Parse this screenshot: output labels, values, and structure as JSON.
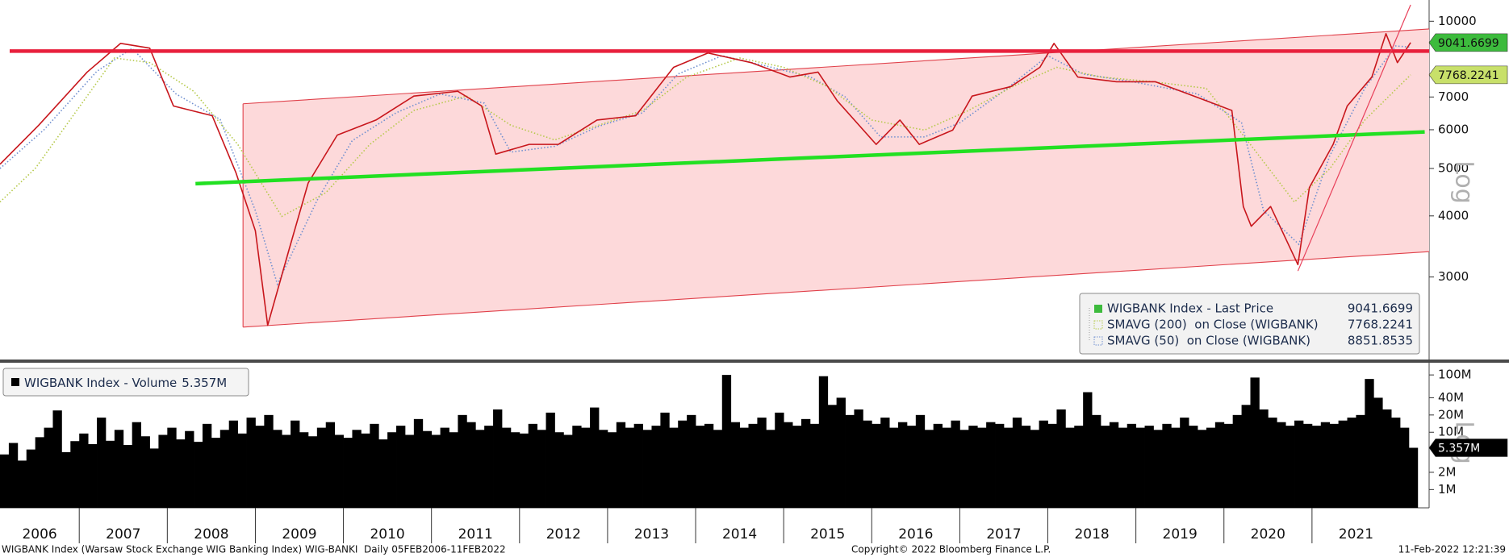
{
  "chart_data": [
    {
      "type": "line",
      "log_scale": true,
      "ylabel": "Log",
      "legend": "lower right",
      "xlim": [
        2006.1,
        2022.33
      ],
      "ylim": [
        2050,
        11050
      ],
      "yticks": [
        3000,
        4000,
        5000,
        6000,
        7000,
        10000
      ],
      "channel": {
        "x": [
          2008.86,
          2022.33
        ],
        "upper": [
          6780,
          9640
        ],
        "lower": [
          2370,
          3380
        ],
        "color": "#fdd9da",
        "edge_color": "#e0404a"
      },
      "lines": [
        {
          "x": [
            2006.21,
            2022.33
          ],
          "values": [
            8690,
            8690
          ],
          "color": "#e8203c",
          "bold": true
        },
        {
          "x": [
            2008.32,
            2022.28
          ],
          "values": [
            4655,
            5940
          ],
          "color": "#22e022",
          "bold": true
        },
        {
          "x": [
            2020.84,
            2022.12
          ],
          "values": [
            3086,
            10800
          ],
          "color": "#e8405a",
          "bold": false
        }
      ],
      "series": [
        {
          "name": "WIGBANK Index - Last Price",
          "color": "#c8161c",
          "tag_color": "#3dbb3d",
          "x": [
            2006.1,
            2006.54,
            2007.09,
            2007.47,
            2007.8,
            2008.07,
            2008.51,
            2008.78,
            2009.0,
            2009.14,
            2009.38,
            2009.6,
            2009.93,
            2010.37,
            2010.8,
            2011.3,
            2011.57,
            2011.73,
            2012.11,
            2012.44,
            2012.88,
            2013.32,
            2013.75,
            2014.14,
            2014.63,
            2015.07,
            2015.39,
            2015.61,
            2016.05,
            2016.32,
            2016.54,
            2016.92,
            2017.14,
            2017.58,
            2017.91,
            2018.07,
            2018.34,
            2018.78,
            2019.22,
            2019.66,
            2020.09,
            2020.22,
            2020.31,
            2020.53,
            2020.84,
            2020.97,
            2021.24,
            2021.4,
            2021.68,
            2021.84,
            2021.97,
            2022.12
          ],
          "values": [
            5100,
            6130,
            7870,
            9010,
            8810,
            6710,
            6410,
            4900,
            3730,
            2390,
            3400,
            4670,
            5850,
            6280,
            7030,
            7190,
            6710,
            5350,
            5600,
            5600,
            6280,
            6410,
            8050,
            8610,
            8230,
            7690,
            7870,
            6870,
            5600,
            6280,
            5600,
            5990,
            7030,
            7350,
            8050,
            9010,
            7690,
            7520,
            7520,
            7030,
            6570,
            4180,
            3810,
            4180,
            3180,
            4570,
            5600,
            6710,
            7690,
            9430,
            8230,
            9041.6699
          ]
        },
        {
          "name": "SMAVG (200)  on Close (WIGBANK)",
          "color": "#b5c94a",
          "tag_color": "#c8e06a",
          "dash": "dotted",
          "x": [
            2006.1,
            2006.5,
            2007.4,
            2007.8,
            2008.3,
            2008.8,
            2009.3,
            2009.8,
            2010.3,
            2010.8,
            2011.4,
            2011.9,
            2012.4,
            2012.9,
            2013.4,
            2013.9,
            2014.5,
            2015.0,
            2015.5,
            2016.0,
            2016.6,
            2017.1,
            2017.6,
            2018.1,
            2018.6,
            2019.2,
            2019.8,
            2020.3,
            2020.8,
            2021.2,
            2021.6,
            2022.12
          ],
          "values": [
            4270,
            5000,
            8410,
            8230,
            7190,
            5600,
            3990,
            4460,
            5600,
            6570,
            7030,
            6130,
            5720,
            6130,
            6570,
            7690,
            8410,
            8050,
            7350,
            6280,
            5990,
            6570,
            7350,
            8050,
            7690,
            7520,
            7290,
            5600,
            4270,
            4990,
            6280,
            7768.2241
          ]
        },
        {
          "name": "SMAVG (50)  on Close (WIGBANK)",
          "color": "#6f8fd0",
          "dash": "dotted",
          "x": [
            2006.1,
            2006.6,
            2007.2,
            2007.6,
            2008.1,
            2008.6,
            2009.0,
            2009.25,
            2009.7,
            2010.1,
            2010.6,
            2011.1,
            2011.6,
            2011.9,
            2012.4,
            2012.9,
            2013.4,
            2013.8,
            2014.3,
            2014.8,
            2015.3,
            2015.7,
            2016.1,
            2016.6,
            2017.0,
            2017.5,
            2018.0,
            2018.4,
            2019.0,
            2019.7,
            2020.2,
            2020.45,
            2020.85,
            2021.2,
            2021.6,
            2021.95,
            2022.12
          ],
          "values": [
            5000,
            6000,
            7900,
            8800,
            7100,
            6300,
            4100,
            2900,
            4300,
            5700,
            6500,
            7100,
            6800,
            5400,
            5550,
            6100,
            6500,
            7800,
            8500,
            8100,
            7700,
            7000,
            5800,
            5800,
            6200,
            7200,
            8500,
            7800,
            7500,
            7100,
            6200,
            4100,
            3500,
            5300,
            7300,
            8900,
            8851.8535
          ]
        }
      ]
    },
    {
      "type": "bar",
      "log_scale": true,
      "ylabel": "Log",
      "legend": "upper left",
      "xlim": [
        2006.1,
        2022.33
      ],
      "ylim": [
        480000,
        153000000
      ],
      "yticks": [
        {
          "value": 1000000,
          "label": "1M"
        },
        {
          "value": 2000000,
          "label": "2M"
        },
        {
          "value": 10000000,
          "label": "10M"
        },
        {
          "value": 20000000,
          "label": "20M"
        },
        {
          "value": 40000000,
          "label": "40M"
        },
        {
          "value": 100000000,
          "label": "100M"
        }
      ],
      "xticks": [
        2006,
        2007,
        2008,
        2009,
        2010,
        2011,
        2012,
        2013,
        2014,
        2015,
        2016,
        2017,
        2018,
        2019,
        2020,
        2021
      ],
      "series": [
        {
          "name": "WIGBANK Index - Volume",
          "color": "#000000",
          "tag_color": "#000000",
          "last_label": "5.357M",
          "x": [
            2006.1,
            2006.2,
            2006.3,
            2006.4,
            2006.5,
            2006.6,
            2006.7,
            2006.8,
            2006.9,
            2007.0,
            2007.1,
            2007.2,
            2007.3,
            2007.4,
            2007.5,
            2007.6,
            2007.7,
            2007.8,
            2007.9,
            2008.0,
            2008.1,
            2008.2,
            2008.3,
            2008.4,
            2008.5,
            2008.6,
            2008.7,
            2008.8,
            2008.9,
            2009.0,
            2009.1,
            2009.2,
            2009.3,
            2009.4,
            2009.5,
            2009.6,
            2009.7,
            2009.8,
            2009.9,
            2010.0,
            2010.1,
            2010.2,
            2010.3,
            2010.4,
            2010.5,
            2010.6,
            2010.7,
            2010.8,
            2010.9,
            2011.0,
            2011.1,
            2011.2,
            2011.3,
            2011.4,
            2011.5,
            2011.6,
            2011.7,
            2011.8,
            2011.9,
            2012.0,
            2012.1,
            2012.2,
            2012.3,
            2012.4,
            2012.5,
            2012.6,
            2012.7,
            2012.8,
            2012.9,
            2013.0,
            2013.1,
            2013.2,
            2013.3,
            2013.4,
            2013.5,
            2013.6,
            2013.7,
            2013.8,
            2013.9,
            2014.0,
            2014.1,
            2014.2,
            2014.3,
            2014.4,
            2014.5,
            2014.6,
            2014.7,
            2014.8,
            2014.9,
            2015.0,
            2015.1,
            2015.2,
            2015.3,
            2015.4,
            2015.5,
            2015.6,
            2015.7,
            2015.8,
            2015.9,
            2016.0,
            2016.1,
            2016.2,
            2016.3,
            2016.4,
            2016.5,
            2016.6,
            2016.7,
            2016.8,
            2016.9,
            2017.0,
            2017.1,
            2017.2,
            2017.3,
            2017.4,
            2017.5,
            2017.6,
            2017.7,
            2017.8,
            2017.9,
            2018.0,
            2018.1,
            2018.2,
            2018.3,
            2018.4,
            2018.5,
            2018.6,
            2018.7,
            2018.8,
            2018.9,
            2019.0,
            2019.1,
            2019.2,
            2019.3,
            2019.4,
            2019.5,
            2019.6,
            2019.7,
            2019.8,
            2019.9,
            2020.0,
            2020.1,
            2020.2,
            2020.3,
            2020.4,
            2020.5,
            2020.6,
            2020.7,
            2020.8,
            2020.9,
            2021.0,
            2021.1,
            2021.2,
            2021.3,
            2021.4,
            2021.5,
            2021.6,
            2021.7,
            2021.8,
            2021.9,
            2022.0,
            2022.1
          ],
          "values": [
            4100000,
            6500000,
            3200000,
            5000000,
            8200000,
            12000000,
            24000000,
            4500000,
            7000000,
            9500000,
            6200000,
            18000000,
            7100000,
            11000000,
            6000000,
            15000000,
            8500000,
            5200000,
            9000000,
            12000000,
            7500000,
            10500000,
            6800000,
            14000000,
            8000000,
            11000000,
            16000000,
            9500000,
            18000000,
            13000000,
            20000000,
            11000000,
            9000000,
            16000000,
            10000000,
            8500000,
            12000000,
            15000000,
            9000000,
            8000000,
            11000000,
            9500000,
            14000000,
            7500000,
            10000000,
            13000000,
            9000000,
            17000000,
            10500000,
            9000000,
            12000000,
            10000000,
            20000000,
            15000000,
            11000000,
            13000000,
            25000000,
            12000000,
            10000000,
            9500000,
            14000000,
            11000000,
            22000000,
            10000000,
            9000000,
            13000000,
            12000000,
            27000000,
            11000000,
            10000000,
            15000000,
            12000000,
            14000000,
            11000000,
            13000000,
            22000000,
            12000000,
            16000000,
            20000000,
            13000000,
            14000000,
            11000000,
            100000000,
            15000000,
            12000000,
            14000000,
            18000000,
            11000000,
            22000000,
            15000000,
            13000000,
            17000000,
            14000000,
            95000000,
            30000000,
            40000000,
            20000000,
            25000000,
            16000000,
            14000000,
            18000000,
            12000000,
            15000000,
            13000000,
            20000000,
            11000000,
            14000000,
            12000000,
            16000000,
            11000000,
            13000000,
            12000000,
            15000000,
            14000000,
            12000000,
            18000000,
            13000000,
            11000000,
            16000000,
            14000000,
            25000000,
            12000000,
            13000000,
            50000000,
            20000000,
            13000000,
            15000000,
            12000000,
            14000000,
            12000000,
            13000000,
            11000000,
            14000000,
            12000000,
            18000000,
            13000000,
            11000000,
            12000000,
            15000000,
            14000000,
            20000000,
            30000000,
            90000000,
            25000000,
            18000000,
            15000000,
            13000000,
            16000000,
            14000000,
            13000000,
            15000000,
            14000000,
            16000000,
            18000000,
            20000000,
            85000000,
            40000000,
            25000000,
            18000000,
            12000000,
            5357000
          ]
        }
      ]
    }
  ],
  "footer": {
    "left": "WIGBANK Index (Warsaw Stock Exchange WIG Banking Index) WIG-BANKI  Daily 05FEB2006-11FEB2022",
    "center": "Copyright© 2022 Bloomberg Finance L.P.",
    "right": "11-Feb-2022 12:21:39"
  }
}
